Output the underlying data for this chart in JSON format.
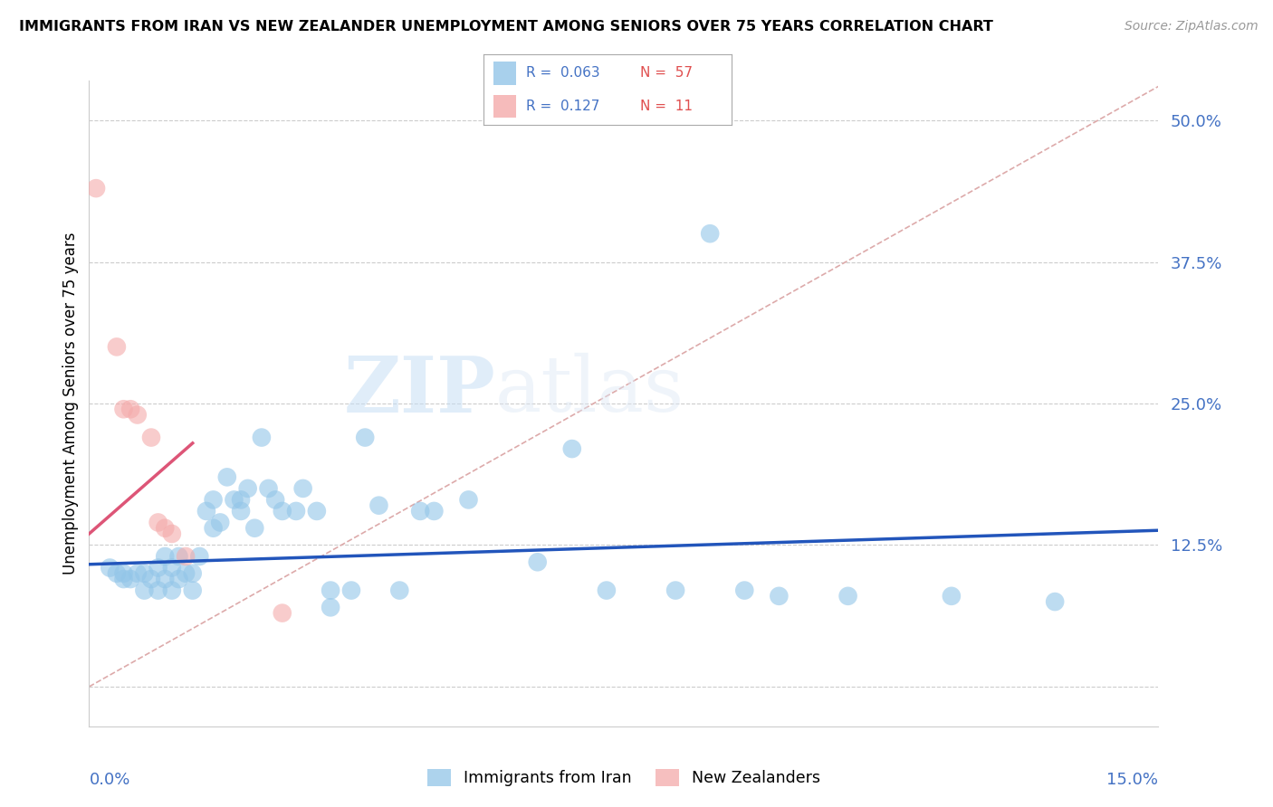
{
  "title": "IMMIGRANTS FROM IRAN VS NEW ZEALANDER UNEMPLOYMENT AMONG SENIORS OVER 75 YEARS CORRELATION CHART",
  "source": "Source: ZipAtlas.com",
  "ylabel": "Unemployment Among Seniors over 75 years",
  "xlim": [
    0.0,
    0.155
  ],
  "ylim": [
    -0.035,
    0.535
  ],
  "ytick_vals": [
    0.0,
    0.125,
    0.25,
    0.375,
    0.5
  ],
  "ytick_labels": [
    "",
    "12.5%",
    "25.0%",
    "37.5%",
    "50.0%"
  ],
  "blue_color": "#92c5e8",
  "pink_color": "#f4aaaa",
  "blue_line_color": "#2255bb",
  "pink_line_color": "#dd5577",
  "diag_line_color": "#ddaaaa",
  "blue_scatter_x": [
    0.003,
    0.004,
    0.005,
    0.005,
    0.006,
    0.007,
    0.008,
    0.008,
    0.009,
    0.01,
    0.01,
    0.011,
    0.011,
    0.012,
    0.012,
    0.013,
    0.013,
    0.014,
    0.015,
    0.015,
    0.016,
    0.017,
    0.018,
    0.018,
    0.019,
    0.02,
    0.021,
    0.022,
    0.022,
    0.023,
    0.024,
    0.025,
    0.026,
    0.027,
    0.028,
    0.03,
    0.031,
    0.033,
    0.035,
    0.035,
    0.038,
    0.04,
    0.042,
    0.045,
    0.048,
    0.05,
    0.055,
    0.065,
    0.07,
    0.075,
    0.085,
    0.09,
    0.095,
    0.1,
    0.11,
    0.125,
    0.14
  ],
  "blue_scatter_y": [
    0.105,
    0.1,
    0.095,
    0.1,
    0.095,
    0.1,
    0.085,
    0.1,
    0.095,
    0.085,
    0.105,
    0.095,
    0.115,
    0.085,
    0.105,
    0.095,
    0.115,
    0.1,
    0.085,
    0.1,
    0.115,
    0.155,
    0.14,
    0.165,
    0.145,
    0.185,
    0.165,
    0.165,
    0.155,
    0.175,
    0.14,
    0.22,
    0.175,
    0.165,
    0.155,
    0.155,
    0.175,
    0.155,
    0.085,
    0.07,
    0.085,
    0.22,
    0.16,
    0.085,
    0.155,
    0.155,
    0.165,
    0.11,
    0.21,
    0.085,
    0.085,
    0.4,
    0.085,
    0.08,
    0.08,
    0.08,
    0.075
  ],
  "pink_scatter_x": [
    0.001,
    0.004,
    0.005,
    0.006,
    0.007,
    0.009,
    0.01,
    0.011,
    0.012,
    0.014,
    0.028
  ],
  "pink_scatter_y": [
    0.44,
    0.3,
    0.245,
    0.245,
    0.24,
    0.22,
    0.145,
    0.14,
    0.135,
    0.115,
    0.065
  ],
  "blue_line_x": [
    0.0,
    0.155
  ],
  "blue_line_y": [
    0.108,
    0.138
  ],
  "pink_line_x": [
    0.0,
    0.015
  ],
  "pink_line_y": [
    0.135,
    0.215
  ],
  "diag_line_x": [
    0.0,
    0.155
  ],
  "diag_line_y": [
    0.0,
    0.53
  ],
  "legend_r1": "0.063",
  "legend_n1": "57",
  "legend_r2": "0.127",
  "legend_n2": "11",
  "watermark_zip": "ZIP",
  "watermark_atlas": "atlas"
}
